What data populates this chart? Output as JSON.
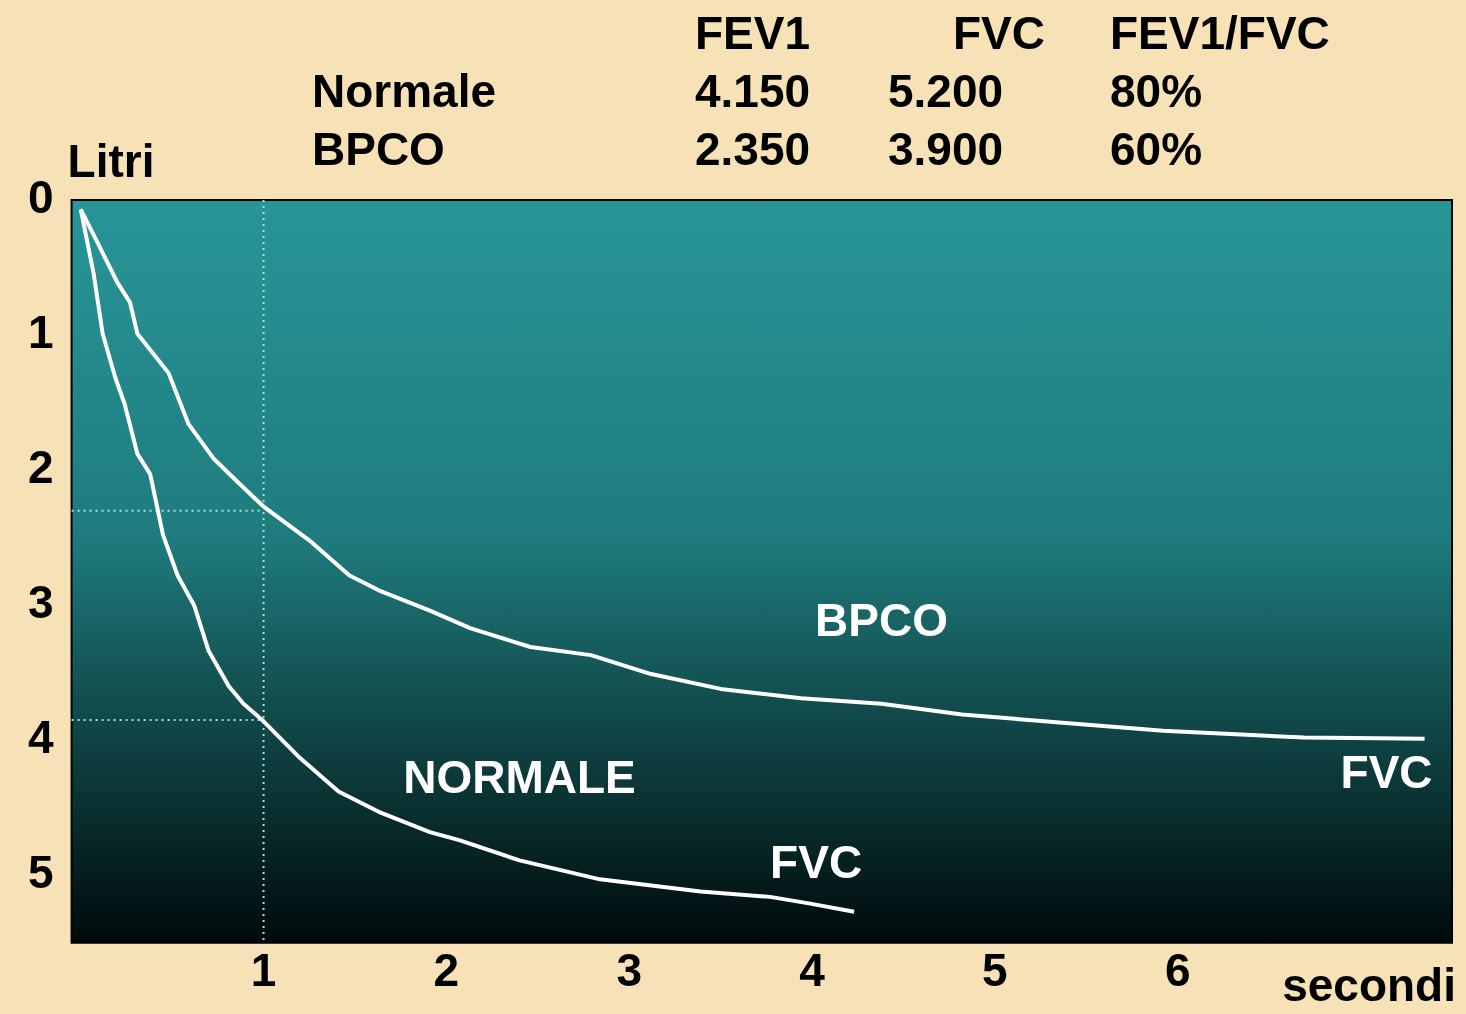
{
  "chart_data": {
    "type": "line",
    "xlabel": "secondi",
    "ylabel": "Litri",
    "xlim": [
      -0.05,
      7.5
    ],
    "ylim": [
      5.5,
      0
    ],
    "xticks": [
      1,
      2,
      3,
      4,
      5,
      6
    ],
    "yticks": [
      0,
      1,
      2,
      3,
      4,
      5
    ],
    "grid": false,
    "legend": false,
    "marker": "none",
    "line_style": "solid",
    "series": [
      {
        "name": "NORMALE",
        "color": "#ffffff",
        "x": [
          0,
          0.07,
          0.12,
          0.19,
          0.24,
          0.31,
          0.38,
          0.45,
          0.53,
          0.62,
          0.7,
          0.81,
          0.89,
          1.0,
          1.19,
          1.41,
          1.63,
          1.91,
          2.07,
          2.4,
          2.84,
          3.39,
          3.77,
          3.99,
          4.23
        ],
        "values": [
          0.07,
          0.54,
          0.99,
          1.32,
          1.51,
          1.88,
          2.03,
          2.48,
          2.78,
          3.0,
          3.34,
          3.6,
          3.73,
          3.86,
          4.12,
          4.38,
          4.53,
          4.68,
          4.74,
          4.89,
          5.03,
          5.12,
          5.16,
          5.21,
          5.27
        ]
      },
      {
        "name": "BPCO",
        "color": "#ffffff",
        "x": [
          0,
          0.09,
          0.2,
          0.27,
          0.31,
          0.48,
          0.59,
          0.73,
          0.86,
          1.0,
          1.25,
          1.47,
          1.63,
          1.91,
          2.13,
          2.46,
          2.79,
          3.12,
          3.5,
          3.94,
          4.38,
          4.82,
          5.37,
          5.92,
          6.69,
          7.35
        ],
        "values": [
          0.07,
          0.31,
          0.61,
          0.76,
          0.99,
          1.28,
          1.66,
          1.92,
          2.09,
          2.27,
          2.52,
          2.78,
          2.89,
          3.04,
          3.17,
          3.31,
          3.37,
          3.51,
          3.62,
          3.69,
          3.73,
          3.81,
          3.87,
          3.93,
          3.98,
          3.99
        ]
      }
    ],
    "ref_lines": [
      {
        "axis": "x",
        "value": 1,
        "color": "#a8e0e0",
        "line_style": "dotted"
      },
      {
        "axis": "y",
        "value": 2.3,
        "color": "#a8e0e0",
        "line_style": "dotted"
      },
      {
        "axis": "y",
        "value": 3.85,
        "color": "#a8e0e0",
        "line_style": "dotted"
      }
    ],
    "annotations": [
      "FEV1",
      "FVC",
      "FEV1/FVC",
      "Normale",
      "4.150",
      "5.200",
      "80%",
      "BPCO",
      "2.350",
      "3.900",
      "60%",
      {
        "text": "FVC",
        "x": 4.23,
        "y": 5.27
      },
      {
        "text": "FVC",
        "x": 7.35,
        "y": 3.99
      }
    ]
  }
}
